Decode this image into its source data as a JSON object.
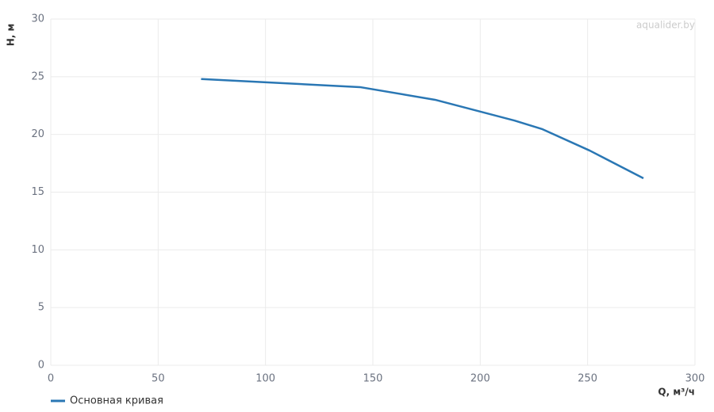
{
  "chart_data": {
    "type": "line",
    "x_label": "Q, м³/ч",
    "y_label": "H, м",
    "watermark": "aqualider.by",
    "x": [
      70,
      144,
      179,
      216,
      229,
      251,
      276
    ],
    "series": [
      {
        "name": "Основная кривая",
        "color": "#2a77b4",
        "values": [
          24.8,
          24.1,
          23.0,
          21.2,
          20.45,
          18.6,
          16.2
        ]
      }
    ],
    "xlim": [
      0,
      300
    ],
    "xticks": [
      0,
      50,
      100,
      150,
      200,
      250,
      300
    ],
    "ylim": [
      0,
      30
    ],
    "yticks": [
      0,
      5,
      10,
      15,
      20,
      25,
      30
    ],
    "grid": true,
    "legend": "bottom-left"
  }
}
